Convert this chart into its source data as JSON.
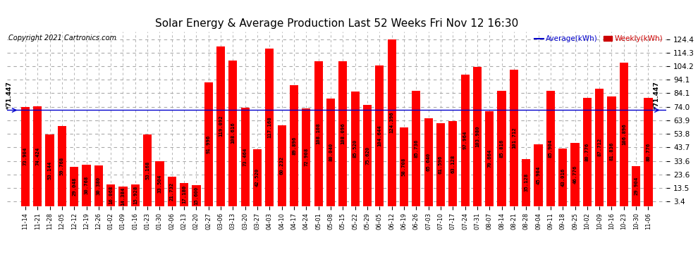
{
  "title": "Solar Energy & Average Production Last 52 Weeks Fri Nov 12 16:30",
  "copyright": "Copyright 2021 Cartronics.com",
  "average_label": "Average(kWh)",
  "weekly_label": "Weekly(kWh)",
  "average_value": 71.447,
  "categories": [
    "11-14",
    "11-21",
    "11-28",
    "12-05",
    "12-12",
    "12-19",
    "12-26",
    "01-02",
    "01-09",
    "01-16",
    "01-23",
    "01-30",
    "02-06",
    "02-13",
    "02-20",
    "02-27",
    "03-06",
    "03-13",
    "03-20",
    "03-27",
    "04-03",
    "04-10",
    "04-17",
    "04-24",
    "05-01",
    "05-08",
    "05-15",
    "05-22",
    "05-29",
    "06-05",
    "06-12",
    "06-19",
    "06-26",
    "07-03",
    "07-10",
    "07-17",
    "07-24",
    "07-31",
    "08-07",
    "08-14",
    "08-21",
    "08-28",
    "09-04",
    "09-11",
    "09-18",
    "09-25",
    "10-02",
    "10-09",
    "10-16",
    "10-23",
    "10-30",
    "11-06"
  ],
  "values": [
    73.904,
    74.424,
    53.144,
    59.768,
    29.048,
    30.768,
    30.38,
    16.068,
    14.384,
    15.928,
    53.168,
    33.504,
    21.732,
    17.18,
    15.6,
    91.996,
    119.092,
    108.616,
    73.464,
    42.52,
    117.168,
    60.232,
    89.896,
    72.908,
    108.108,
    80.04,
    108.096,
    85.52,
    75.62,
    104.644,
    124.396,
    58.708,
    85.736,
    65.64,
    61.596,
    63.128,
    97.964,
    103.98,
    70.664,
    85.816,
    101.712,
    35.128,
    45.904,
    85.904,
    43.016,
    46.776,
    80.776,
    87.712,
    81.836,
    106.896,
    29.904,
    80.776
  ],
  "bar_color": "#ff0000",
  "average_line_color": "#0000cc",
  "average_text_color": "#000000",
  "average_label_color": "#0000cc",
  "weekly_label_color": "#cc0000",
  "title_color": "#000000",
  "copyright_color": "#000000",
  "bg_color": "#ffffff",
  "grid_color": "#aaaaaa",
  "yticks": [
    3.4,
    13.5,
    23.6,
    33.6,
    43.7,
    53.8,
    63.9,
    74.0,
    84.1,
    94.1,
    104.2,
    114.3,
    124.4
  ],
  "value_fontsize": 5.2,
  "xlabel_fontsize": 6.0,
  "ylabel_fontsize": 7.5,
  "title_fontsize": 11,
  "copyright_fontsize": 7
}
